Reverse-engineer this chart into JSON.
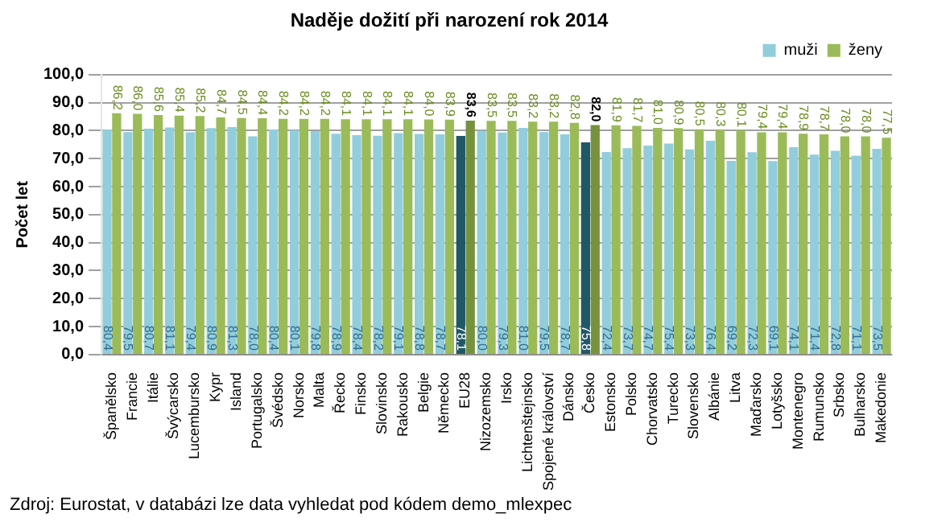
{
  "chart_data": {
    "type": "bar",
    "title": "Naděje dožití při narození rok 2014",
    "ylabel": "Počet let",
    "categories": [
      "Španělsko",
      "Francie",
      "Itálie",
      "Švýcarsko",
      "Lucembursko",
      "Kypr",
      "Island",
      "Portugalsko",
      "Švédsko",
      "Norsko",
      "Malta",
      "Řecko",
      "Finsko",
      "Slovinsko",
      "Rakousko",
      "Belgie",
      "Německo",
      "EU28",
      "Nizozemsko",
      "Irsko",
      "Lichtenštejnsko",
      "Spojené království",
      "Dánsko",
      "Česko",
      "Estonsko",
      "Polsko",
      "Chorvatsko",
      "Turecko",
      "Slovensko",
      "Albánie",
      "Litva",
      "Maďarsko",
      "Lotyšsko",
      "Montenegro",
      "Rumunsko",
      "Srbsko",
      "Bulharsko",
      "Makedonie"
    ],
    "series": [
      {
        "name": "muži",
        "color": "#92cddc",
        "colors": [
          "#92cddc",
          "#92cddc",
          "#92cddc",
          "#92cddc",
          "#92cddc",
          "#92cddc",
          "#92cddc",
          "#92cddc",
          "#92cddc",
          "#92cddc",
          "#92cddc",
          "#92cddc",
          "#92cddc",
          "#92cddc",
          "#92cddc",
          "#92cddc",
          "#92cddc",
          "#215867",
          "#92cddc",
          "#92cddc",
          "#92cddc",
          "#92cddc",
          "#92cddc",
          "#215867",
          "#92cddc",
          "#92cddc",
          "#92cddc",
          "#92cddc",
          "#92cddc",
          "#92cddc",
          "#92cddc",
          "#92cddc",
          "#92cddc",
          "#92cddc",
          "#92cddc",
          "#92cddc",
          "#92cddc",
          "#92cddc"
        ],
        "values": [
          80.4,
          79.5,
          80.7,
          81.1,
          79.4,
          80.9,
          81.3,
          78.0,
          80.4,
          80.1,
          79.8,
          78.9,
          78.4,
          78.2,
          79.1,
          78.8,
          78.7,
          78.1,
          80.0,
          79.3,
          81.0,
          79.5,
          78.7,
          75.8,
          72.4,
          73.7,
          74.7,
          75.4,
          73.3,
          76.4,
          69.2,
          72.3,
          69.1,
          74.1,
          71.4,
          72.8,
          71.1,
          73.5
        ],
        "value_labels": [
          "80,4",
          "79,5",
          "80,7",
          "81,1",
          "79,4",
          "80,9",
          "81,3",
          "78,0",
          "80,4",
          "80,1",
          "79,8",
          "78,9",
          "78,4",
          "78,2",
          "79,1",
          "78,8",
          "78,7",
          "78,1",
          "80,0",
          "79,3",
          "81,0",
          "79,5",
          "78,7",
          "75,8",
          "72,4",
          "73,7",
          "74,7",
          "75,4",
          "73,3",
          "76,4",
          "69,2",
          "72,3",
          "69,1",
          "74,1",
          "71,4",
          "72,8",
          "71,1",
          "73,5"
        ]
      },
      {
        "name": "ženy",
        "color": "#9bbb59",
        "colors": [
          "#9bbb59",
          "#9bbb59",
          "#9bbb59",
          "#9bbb59",
          "#9bbb59",
          "#9bbb59",
          "#9bbb59",
          "#9bbb59",
          "#9bbb59",
          "#9bbb59",
          "#9bbb59",
          "#9bbb59",
          "#9bbb59",
          "#9bbb59",
          "#9bbb59",
          "#9bbb59",
          "#9bbb59",
          "#76923c",
          "#9bbb59",
          "#9bbb59",
          "#9bbb59",
          "#9bbb59",
          "#9bbb59",
          "#76923c",
          "#9bbb59",
          "#9bbb59",
          "#9bbb59",
          "#9bbb59",
          "#9bbb59",
          "#9bbb59",
          "#9bbb59",
          "#9bbb59",
          "#9bbb59",
          "#9bbb59",
          "#9bbb59",
          "#9bbb59",
          "#9bbb59",
          "#9bbb59"
        ],
        "values": [
          86.2,
          86.0,
          85.6,
          85.4,
          85.2,
          84.7,
          84.5,
          84.4,
          84.2,
          84.2,
          84.2,
          84.1,
          84.1,
          84.1,
          84.1,
          84.0,
          83.9,
          83.6,
          83.5,
          83.5,
          83.2,
          83.2,
          82.8,
          82.0,
          81.9,
          81.7,
          81.0,
          80.9,
          80.5,
          80.3,
          80.1,
          79.4,
          79.4,
          78.9,
          78.7,
          78.0,
          78.0,
          77.5
        ],
        "value_labels": [
          "86,2",
          "86,0",
          "85,6",
          "85,4",
          "85,2",
          "84,7",
          "84,5",
          "84,4",
          "84,2",
          "84,2",
          "84,2",
          "84,1",
          "84,1",
          "84,1",
          "84,1",
          "84,0",
          "83,9",
          "83,6",
          "83,5",
          "83,5",
          "83,2",
          "83,2",
          "82,8",
          "82,0",
          "81,9",
          "81,7",
          "81,0",
          "80,9",
          "80,5",
          "80,3",
          "80,1",
          "79,4",
          "79,4",
          "78,9",
          "78,7",
          "78,0",
          "78,0",
          "77,5"
        ]
      }
    ],
    "ylim": [
      0,
      100
    ],
    "yticks": [
      {
        "value": 0,
        "label": "0,0"
      },
      {
        "value": 10,
        "label": "10,0"
      },
      {
        "value": 20,
        "label": "20,0"
      },
      {
        "value": 30,
        "label": "30,0"
      },
      {
        "value": 40,
        "label": "40,0"
      },
      {
        "value": 50,
        "label": "50,0"
      },
      {
        "value": 60,
        "label": "60,0"
      },
      {
        "value": 70,
        "label": "70,0"
      },
      {
        "value": 80,
        "label": "80,0"
      },
      {
        "value": 90,
        "label": "90,0"
      },
      {
        "value": 100,
        "label": "100,0"
      }
    ],
    "grid": "y",
    "legend": "top right",
    "annotations": [
      "Zdroj: Eurostat, v databázi lze data vyhledat pod kódem demo_mlexpec"
    ]
  }
}
